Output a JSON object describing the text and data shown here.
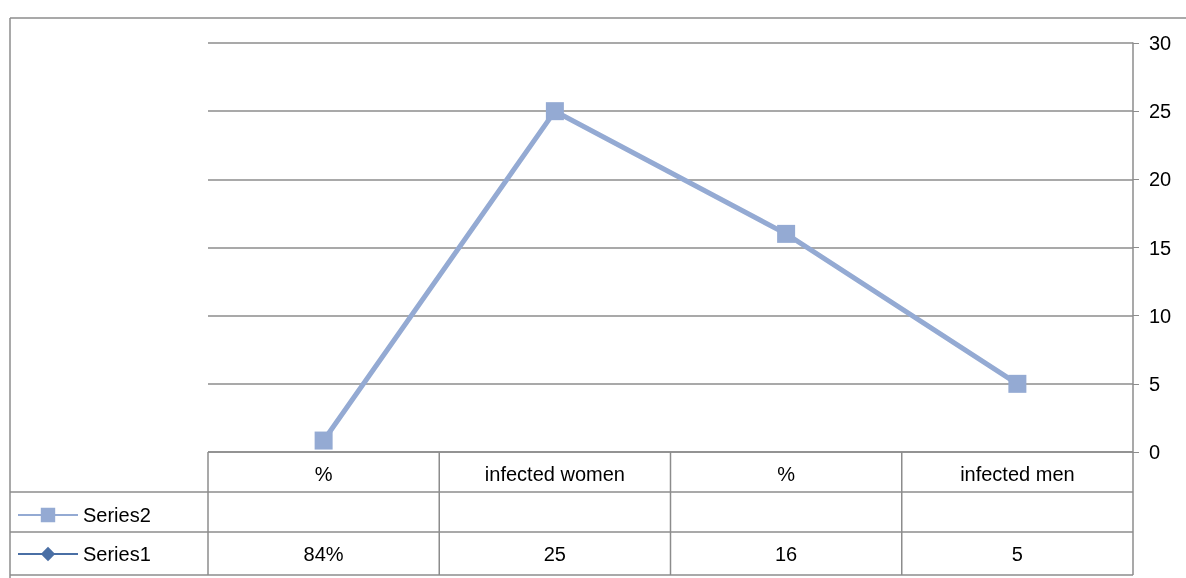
{
  "chart_data": {
    "type": "line",
    "categories": [
      "%",
      "infected women",
      "%",
      "infected men"
    ],
    "series": [
      {
        "name": "Series1",
        "color": "#4a6fa5",
        "marker": "diamond",
        "values": [
          null,
          null,
          null,
          null
        ],
        "value_labels": [
          "84%",
          "25",
          "16",
          "5"
        ]
      },
      {
        "name": "Series2",
        "color": "#94aad3",
        "marker": "square",
        "values": [
          0.84,
          25,
          16,
          5
        ]
      }
    ],
    "ylim": [
      0,
      30
    ],
    "yticks": [
      0,
      5,
      10,
      15,
      20,
      25,
      30
    ],
    "grid": "y",
    "legend": "bottom left"
  }
}
